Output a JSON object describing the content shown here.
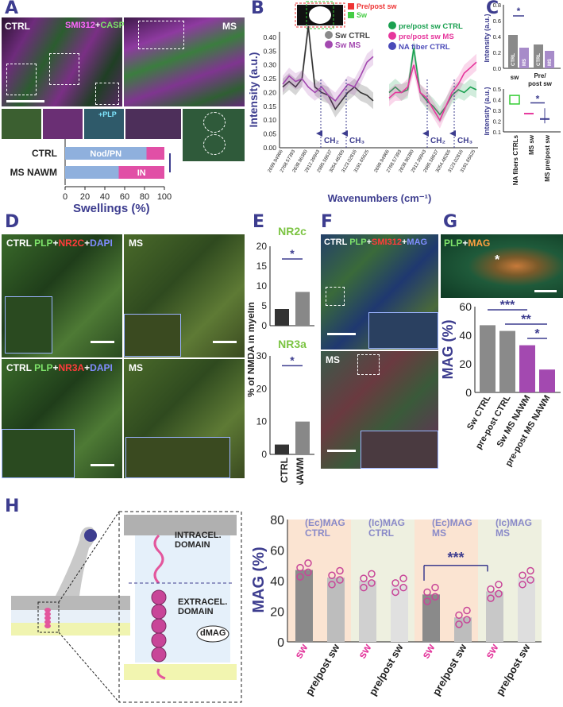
{
  "panels": {
    "A": {
      "letter": "A",
      "ctrl": "CTRL",
      "stain1": "SMI312",
      "plus": "+",
      "stain2": "CASPR",
      "ms": "MS",
      "plp": "+PLP",
      "bar": {
        "title": "Swellings (%)",
        "rows": [
          "CTRL",
          "MS NAWM"
        ],
        "seg1": "Nod/PN",
        "seg2": "IN",
        "ticks": [
          "0",
          "20",
          "40",
          "60",
          "80",
          "100"
        ],
        "sig": "***",
        "values": [
          {
            "nodpn": 82,
            "in": 18
          },
          {
            "nodpn": 54,
            "in": 46
          }
        ]
      }
    },
    "B": {
      "letter": "B",
      "legend_top": [
        "Pre/post sw",
        "Sw"
      ],
      "legend_left": [
        "Sw CTRL",
        "Sw MS"
      ],
      "legend_right": [
        "pre/post sw CTRL",
        "pre/post sw MS",
        "NA fiber CTRL"
      ],
      "ylabel": "Intensity (a.u.)",
      "xlabel": "Wavenumbers (cm⁻¹)",
      "ch2": "CH₂",
      "ch3": "CH₃",
      "yticks": [
        "0.00",
        "0.05",
        "0.10",
        "0.15",
        "0.20",
        "0.25",
        "0.30",
        "0.35",
        "0.40"
      ],
      "xticks": [
        "2699.94966",
        "2768.57393",
        "2838.96380",
        "2912.39943",
        "2985.58637",
        "3054.48265",
        "3123.02816",
        "3191.65625"
      ]
    },
    "C": {
      "letter": "C",
      "ylabel": "Intensity (a.u.)",
      "top_yticks": [
        "0.0",
        "0.2",
        "0.4",
        "0.6",
        "0.8"
      ],
      "top_cats": [
        "sw",
        "Pre/\npost sw"
      ],
      "bar_labels": [
        "CTRL",
        "MS",
        "CTRL",
        "MS"
      ],
      "sig": "*",
      "bottom_yticks": [
        "0.1",
        "0.2",
        "0.3",
        "0.4",
        "0.5"
      ],
      "bottom_cats": [
        "NA fibers CTRLs",
        "MS sw",
        "MS pre/post sw"
      ]
    },
    "D": {
      "letter": "D",
      "top_ctrl": "CTRL",
      "plp": "PLP",
      "plus": "+",
      "nr2c": "NR2C",
      "dapi": "DAPI",
      "ms": "MS",
      "nr3a": "NR3A"
    },
    "E": {
      "letter": "E",
      "t1": "NR2c",
      "t2": "NR3a",
      "ylabel": "% of NMDA in myelin",
      "yticks_top": [
        "0",
        "5",
        "10",
        "15",
        "20"
      ],
      "yticks_bot": [
        "0",
        "10",
        "20",
        "30"
      ],
      "cats": [
        "CTRL",
        "MS NAWM"
      ],
      "sig": "*"
    },
    "F": {
      "letter": "F",
      "ctrl": "CTRL",
      "plp": "PLP",
      "plus": "+",
      "smi": "SMI312",
      "mag": "MAG",
      "ms": "MS"
    },
    "G": {
      "letter": "G",
      "plp": "PLP",
      "plus": "+",
      "mag": "MAG",
      "star": "*",
      "ylabel": "MAG (%)",
      "yticks": [
        "0",
        "20",
        "40",
        "60"
      ],
      "cats": [
        "Sw CTRL",
        "pre-post CTRL",
        "Sw MS NAWM",
        "pre-post MS NAWM"
      ],
      "values": [
        47,
        43,
        33,
        16
      ],
      "sig": [
        "***",
        "**",
        "*"
      ]
    },
    "H": {
      "letter": "H",
      "intra": "INTRACEL.",
      "intra2": "DOMAIN",
      "extra": "EXTRACEL.",
      "extra2": "DOMAIN",
      "dmag": "dMAG",
      "ylabel": "MAG (%)",
      "yticks": [
        "0",
        "20",
        "40",
        "60",
        "80"
      ],
      "groups": [
        {
          "t1": "(Ec)MAG",
          "t2": "CTRL"
        },
        {
          "t1": "(Ic)MAG",
          "t2": "CTRL"
        },
        {
          "t1": "(Ec)MAG",
          "t2": "MS"
        },
        {
          "t1": "(Ic)MAG",
          "t2": "MS"
        }
      ],
      "xcats": [
        "sw",
        "pre/post sw",
        "sw",
        "pre/post sw",
        "sw",
        "pre/post sw",
        "sw",
        "pre/post sw"
      ],
      "values": [
        47,
        42,
        40,
        37,
        31,
        16,
        33,
        42
      ],
      "sig": "***"
    }
  },
  "chart_data": [
    {
      "type": "bar",
      "title": "Swellings (%)",
      "categories": [
        "CTRL",
        "MS NAWM"
      ],
      "series": [
        {
          "name": "Nod/PN",
          "values": [
            82,
            54
          ]
        },
        {
          "name": "IN",
          "values": [
            18,
            46
          ]
        }
      ],
      "xlim": [
        0,
        100
      ]
    },
    {
      "type": "line",
      "ylabel": "Intensity (a.u.)",
      "xlabel": "Wavenumbers (cm⁻¹)",
      "ylim": [
        0,
        0.42
      ],
      "x": [
        2700,
        2735,
        2770,
        2805,
        2839,
        2875,
        2912,
        2948,
        2986,
        3020,
        3054,
        3090,
        3123,
        3158,
        3192
      ],
      "series": [
        {
          "name": "Sw CTRL",
          "values": [
            0.22,
            0.24,
            0.22,
            0.25,
            0.44,
            0.22,
            0.2,
            0.19,
            0.14,
            0.17,
            0.2,
            0.22,
            0.2,
            0.19,
            0.17
          ]
        },
        {
          "name": "Sw MS",
          "values": [
            0.23,
            0.26,
            0.24,
            0.25,
            0.22,
            0.2,
            0.22,
            0.19,
            0.17,
            0.2,
            0.23,
            0.22,
            0.26,
            0.31,
            0.33
          ]
        }
      ]
    },
    {
      "type": "bar",
      "ylabel": "MAG (%)",
      "categories": [
        "Sw CTRL",
        "pre-post CTRL",
        "Sw MS NAWM",
        "pre-post MS NAWM"
      ],
      "values": [
        47,
        43,
        33,
        16
      ],
      "ylim": [
        0,
        60
      ]
    },
    {
      "type": "bar",
      "ylabel": "MAG (%)",
      "categories": [
        "sw",
        "pre/post sw",
        "sw",
        "pre/post sw",
        "sw",
        "pre/post sw",
        "sw",
        "pre/post sw"
      ],
      "values": [
        47,
        42,
        40,
        37,
        31,
        16,
        33,
        42
      ],
      "ylim": [
        0,
        80
      ]
    }
  ],
  "colors": {
    "accent": "#3d3d8f",
    "pink": "#e6369c",
    "purple": "#a349b0",
    "green": "#7ee36a",
    "grey": "#8a8a8a"
  }
}
